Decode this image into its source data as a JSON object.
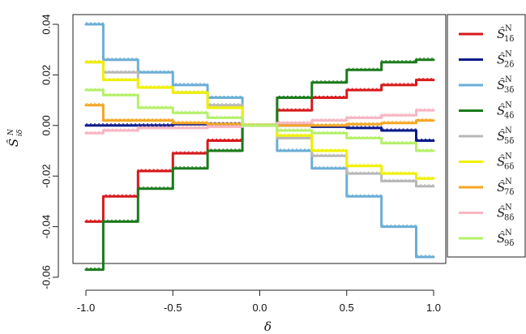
{
  "chart_data": {
    "type": "line",
    "xlabel": "δ",
    "ylabel_symbol": "Ŝ",
    "ylabel_sup": "N",
    "ylabel_sub": "iδ",
    "xlim": [
      -1.0,
      1.0
    ],
    "ylim": [
      -0.06,
      0.04
    ],
    "x_ticks": [
      -1.0,
      -0.5,
      0.0,
      0.5,
      1.0
    ],
    "x_tick_labels": [
      "-1.0",
      "-0.5",
      "0.0",
      "0.5",
      "1.0"
    ],
    "y_ticks": [
      -0.06,
      -0.04,
      -0.02,
      0.0,
      0.02,
      0.04
    ],
    "y_tick_labels": [
      "-0.06",
      "-0.04",
      "-0.02",
      "0.00",
      "0.02",
      "0.04"
    ],
    "grid": false,
    "legend_position": "right",
    "legend_symbol": "Ŝ",
    "legend_sup": "N",
    "x": [
      -1.0,
      -0.8,
      -0.6,
      -0.4,
      -0.2,
      0.0,
      0.2,
      0.4,
      0.6,
      0.8,
      1.0
    ],
    "series": [
      {
        "name": "Ŝ_1δ^N",
        "sub": "1δ",
        "color": "#d7191c",
        "values": [
          -0.038,
          -0.028,
          -0.018,
          -0.011,
          -0.006,
          0.0,
          0.006,
          0.011,
          0.014,
          0.016,
          0.018
        ]
      },
      {
        "name": "Ŝ_2δ^N",
        "sub": "2δ",
        "color": "#0a1a8a",
        "values": [
          0.0,
          0.0,
          0.0,
          0.0005,
          0.0005,
          0.0,
          0.0,
          -0.0005,
          -0.001,
          -0.002,
          -0.006
        ]
      },
      {
        "name": "Ŝ_3δ^N",
        "sub": "3δ",
        "color": "#6baed6",
        "values": [
          0.04,
          0.026,
          0.021,
          0.016,
          0.011,
          0.0,
          -0.01,
          -0.017,
          -0.028,
          -0.04,
          -0.052
        ]
      },
      {
        "name": "Ŝ_4δ^N",
        "sub": "4δ",
        "color": "#1a7a1a",
        "values": [
          -0.057,
          -0.038,
          -0.025,
          -0.017,
          -0.01,
          0.0,
          0.011,
          0.017,
          0.022,
          0.025,
          0.026
        ]
      },
      {
        "name": "Ŝ_5δ^N",
        "sub": "5δ",
        "color": "#b8b8b8",
        "values": [
          0.025,
          0.021,
          0.015,
          0.013,
          0.008,
          0.0,
          -0.005,
          -0.012,
          -0.019,
          -0.022,
          -0.024
        ]
      },
      {
        "name": "Ŝ_6δ^N",
        "sub": "6δ",
        "color": "#f0f000",
        "values": [
          0.025,
          0.018,
          0.015,
          0.013,
          0.007,
          0.0,
          -0.004,
          -0.01,
          -0.016,
          -0.019,
          -0.021
        ]
      },
      {
        "name": "Ŝ_7δ^N",
        "sub": "7δ",
        "color": "#f5a623",
        "values": [
          0.008,
          0.002,
          0.002,
          0.001,
          0.0005,
          0.0,
          0.0,
          0.0,
          0.0005,
          0.001,
          0.002
        ]
      },
      {
        "name": "Ŝ_8δ^N",
        "sub": "8δ",
        "color": "#f7b6c2",
        "values": [
          -0.003,
          -0.002,
          -0.001,
          -0.001,
          -0.0005,
          0.0,
          0.001,
          0.002,
          0.003,
          0.004,
          0.006
        ]
      },
      {
        "name": "Ŝ_9δ^N",
        "sub": "9δ",
        "color": "#b5f06a",
        "values": [
          0.014,
          0.012,
          0.007,
          0.005,
          0.003,
          0.0,
          -0.002,
          -0.003,
          -0.005,
          -0.007,
          -0.01
        ]
      }
    ]
  }
}
